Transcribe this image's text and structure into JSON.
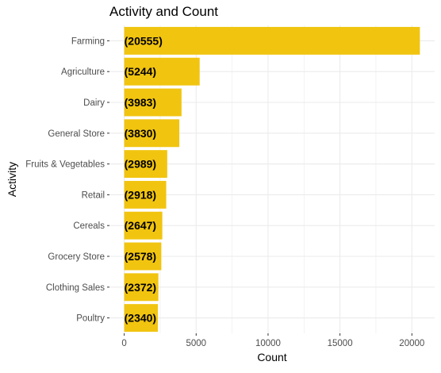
{
  "chart_data": {
    "type": "bar",
    "orientation": "horizontal",
    "title": "Activity and Count",
    "xlabel": "Count",
    "ylabel": "Activity",
    "categories": [
      "Farming",
      "Agriculture",
      "Dairy",
      "General Store",
      "Fruits & Vegetables",
      "Retail",
      "Cereals",
      "Grocery Store",
      "Clothing Sales",
      "Poultry"
    ],
    "values": [
      20555,
      5244,
      3983,
      3830,
      2989,
      2918,
      2647,
      2578,
      2372,
      2340
    ],
    "data_labels": [
      "(20555)",
      "(5244)",
      "(3983)",
      "(3830)",
      "(2989)",
      "(2918)",
      "(2647)",
      "(2578)",
      "(2372)",
      "(2340)"
    ],
    "x_ticks": [
      0,
      5000,
      10000,
      15000,
      20000
    ],
    "x_tick_labels": [
      "0",
      "5000",
      "10000",
      "15000",
      "20000"
    ],
    "xlim": [
      -1028,
      21583
    ],
    "grid": true,
    "bar_color": "#F1C40F",
    "grid_color": "#EBEBEB",
    "label_color": "#000000",
    "tick_label_color": "#4D4D4D"
  }
}
